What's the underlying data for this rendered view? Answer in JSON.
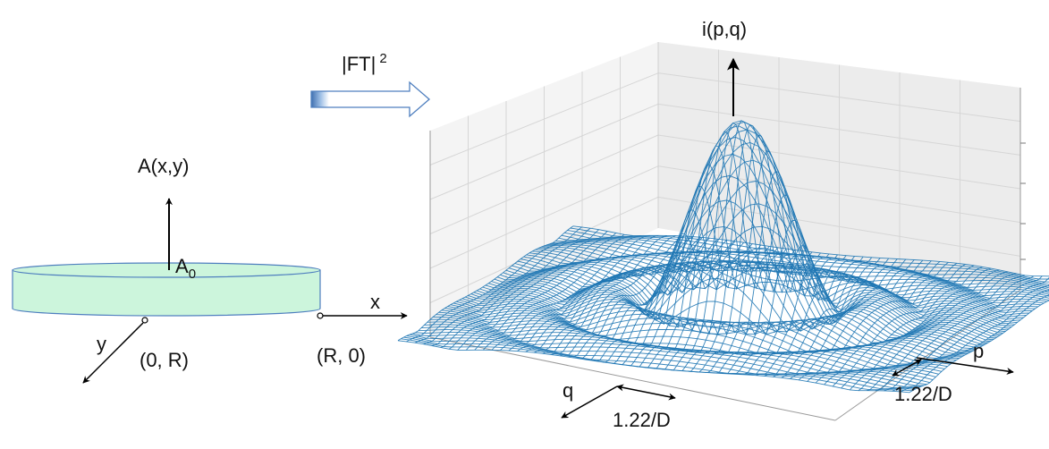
{
  "left": {
    "amplitude_label": "A(x,y)",
    "a0_base": "A",
    "a0_sub": "0",
    "x_label": "x",
    "y_label": "y",
    "point_0R": "(0, R)",
    "point_R0": "(R, 0)",
    "disk_color": "#ccf5dc",
    "disk_edge": "#4f7fbf"
  },
  "transform": {
    "label_base": "|FT|",
    "label_sup": "2"
  },
  "right": {
    "intensity_label": "i(p,q)",
    "q_label": "q",
    "p_label": "p",
    "q_width_label": "1.22/D",
    "p_width_label": "1.22/D",
    "mesh_color": "#1f77b4"
  }
}
